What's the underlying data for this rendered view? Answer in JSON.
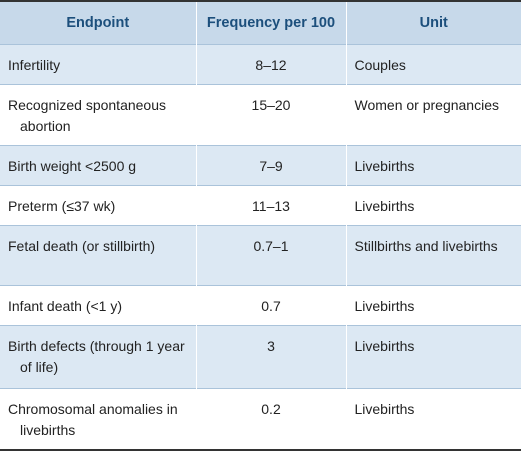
{
  "table": {
    "columns": [
      "Endpoint",
      "Frequency per 100",
      "Unit"
    ],
    "rows": [
      [
        "Infertility",
        "8–12",
        "Couples"
      ],
      [
        "Recognized spontaneous abortion",
        "15–20",
        "Women or pregnancies"
      ],
      [
        "Birth weight <2500 g",
        "7–9",
        "Livebirths"
      ],
      [
        "Preterm (≤37 wk)",
        "11–13",
        "Livebirths"
      ],
      [
        "Fetal death (or stillbirth)",
        "0.7–1",
        "Stillbirths and livebirths"
      ],
      [
        "Infant death (<1 y)",
        "0.7",
        "Livebirths"
      ],
      [
        "Birth defects (through 1 year of life)",
        "3",
        "Livebirths"
      ],
      [
        "Chromosomal anomalies in livebirths",
        "0.2",
        "Livebirths"
      ]
    ]
  }
}
